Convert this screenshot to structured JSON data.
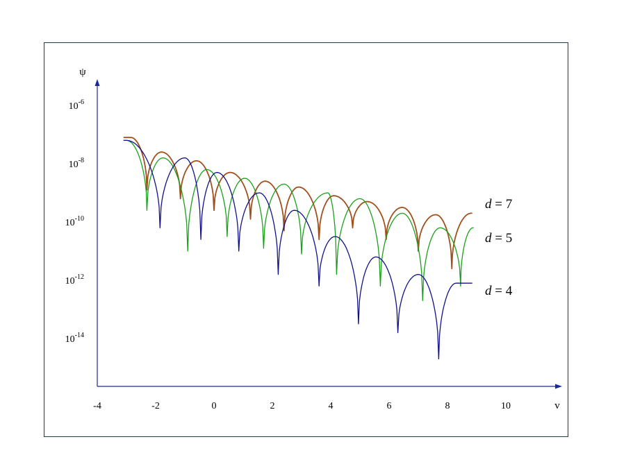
{
  "chart_data": {
    "type": "line",
    "title": "",
    "xlabel": "v",
    "ylabel": "ψ",
    "xlim": [
      -4,
      12
    ],
    "ylim_log10": [
      -17,
      -4
    ],
    "y_scale": "log",
    "grid": false,
    "legend_placement": "right, labels at line ends",
    "x_ticks": [
      "-4",
      "-2",
      "0",
      "2",
      "4",
      "6",
      "8",
      "10"
    ],
    "x_tick_values": [
      -4,
      -2,
      0,
      2,
      4,
      6,
      8,
      10
    ],
    "y_ticks": [
      {
        "base": "10",
        "exp": "-6",
        "log10": -6
      },
      {
        "base": "10",
        "exp": "-8",
        "log10": -8
      },
      {
        "base": "10",
        "exp": "-10",
        "log10": -10
      },
      {
        "base": "10",
        "exp": "-12",
        "log10": -12
      },
      {
        "base": "10",
        "exp": "-14",
        "log10": -14
      }
    ],
    "series": [
      {
        "name": "d = 7",
        "label_var": "d",
        "label_rest": " = 7",
        "color": "#a0501e",
        "x_start": -3.1,
        "x_end": 8.85,
        "lobe_peaks": [
          {
            "x": -2.85,
            "log10": -7.1
          },
          {
            "x": -1.8,
            "log10": -7.6
          },
          {
            "x": -0.6,
            "log10": -7.9
          },
          {
            "x": 0.55,
            "log10": -8.3
          },
          {
            "x": 1.75,
            "log10": -8.6
          },
          {
            "x": 2.9,
            "log10": -8.8
          },
          {
            "x": 4.1,
            "log10": -9.1
          },
          {
            "x": 5.25,
            "log10": -9.3
          },
          {
            "x": 6.45,
            "log10": -9.5
          },
          {
            "x": 7.6,
            "log10": -9.75
          },
          {
            "x": 8.85,
            "log10": -9.7
          }
        ],
        "nulls": [
          {
            "x": -2.3,
            "log10": -8.9
          },
          {
            "x": -1.15,
            "log10": -9.2
          },
          {
            "x": 0.0,
            "log10": -9.6
          },
          {
            "x": 1.25,
            "log10": -9.9
          },
          {
            "x": 2.4,
            "log10": -10.3
          },
          {
            "x": 3.6,
            "log10": -10.6
          },
          {
            "x": 4.75,
            "log10": -10.2
          },
          {
            "x": 5.9,
            "log10": -10.6
          },
          {
            "x": 7.0,
            "log10": -11.0
          },
          {
            "x": 8.15,
            "log10": -11.6
          }
        ]
      },
      {
        "name": "d = 5",
        "label_var": "d",
        "label_rest": " = 5",
        "color": "#1aa01a",
        "x_start": -3.1,
        "x_end": 8.9,
        "lobe_peaks": [
          {
            "x": -3.0,
            "log10": -7.2
          },
          {
            "x": -1.75,
            "log10": -7.8
          },
          {
            "x": -0.25,
            "log10": -8.2
          },
          {
            "x": 1.05,
            "log10": -8.5
          },
          {
            "x": 2.4,
            "log10": -8.7
          },
          {
            "x": 3.9,
            "log10": -9.0
          },
          {
            "x": 5.0,
            "log10": -9.2
          },
          {
            "x": 6.45,
            "log10": -9.7
          },
          {
            "x": 7.75,
            "log10": -10.2
          },
          {
            "x": 8.9,
            "log10": -10.2
          }
        ],
        "nulls": [
          {
            "x": -2.3,
            "log10": -9.6
          },
          {
            "x": -0.9,
            "log10": -11.0
          },
          {
            "x": 0.45,
            "log10": -10.5
          },
          {
            "x": 1.7,
            "log10": -10.9
          },
          {
            "x": 3.0,
            "log10": -11.1
          },
          {
            "x": 4.2,
            "log10": -11.8
          },
          {
            "x": 5.7,
            "log10": -12.2
          },
          {
            "x": 7.15,
            "log10": -12.7
          },
          {
            "x": 8.45,
            "log10": -12.2
          }
        ]
      },
      {
        "name": "d = 4",
        "label_var": "d",
        "label_rest": " = 4",
        "color": "#10108a",
        "x_start": -3.1,
        "x_end": 8.85,
        "lobe_peaks": [
          {
            "x": -3.0,
            "log10": -7.2
          },
          {
            "x": -1.0,
            "log10": -7.8
          },
          {
            "x": 0.1,
            "log10": -8.3
          },
          {
            "x": 1.55,
            "log10": -9.0
          },
          {
            "x": 2.75,
            "log10": -9.6
          },
          {
            "x": 4.15,
            "log10": -10.5
          },
          {
            "x": 5.55,
            "log10": -11.2
          },
          {
            "x": 7.0,
            "log10": -11.8
          },
          {
            "x": 8.3,
            "log10": -12.1
          }
        ],
        "nulls": [
          {
            "x": -1.85,
            "log10": -10.2
          },
          {
            "x": -0.45,
            "log10": -10.6
          },
          {
            "x": 0.85,
            "log10": -11.0
          },
          {
            "x": 2.2,
            "log10": -11.8
          },
          {
            "x": 3.6,
            "log10": -12.2
          },
          {
            "x": 4.95,
            "log10": -13.5
          },
          {
            "x": 6.3,
            "log10": -13.8
          },
          {
            "x": 7.7,
            "log10": -14.7
          }
        ]
      }
    ]
  }
}
